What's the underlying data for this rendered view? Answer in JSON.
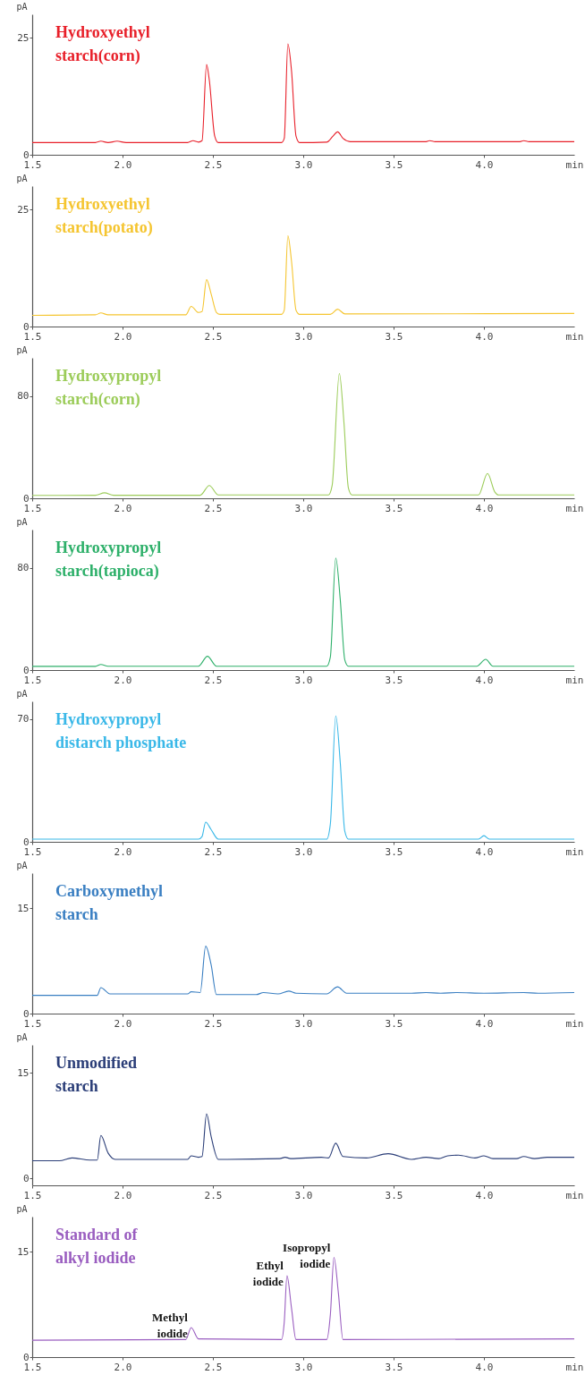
{
  "chart_data": [
    {
      "type": "line",
      "ylabel": "pA",
      "xlabel": "min",
      "xlim": [
        1.5,
        4.5
      ],
      "xticks": [
        1.5,
        {
          "value": 2,
          "label": "2.0"
        },
        2.5,
        {
          "value": 3,
          "label": "3.0"
        },
        3.5,
        {
          "value": 4,
          "label": "4.0"
        }
      ],
      "ylim": [
        0,
        30
      ],
      "yticks": [
        0,
        25
      ],
      "grid": false,
      "series": [
        {
          "name": "Hydroxyethyl\nstarch(corn)",
          "color": "#e8202a",
          "x": [
            1.5,
            1.85,
            1.88,
            1.92,
            1.97,
            2.02,
            2.36,
            2.39,
            2.42,
            2.44,
            2.465,
            2.48,
            2.51,
            2.53,
            2.88,
            2.895,
            2.915,
            2.935,
            2.96,
            2.98,
            3.13,
            3.165,
            3.19,
            3.22,
            3.26,
            3.68,
            3.7,
            3.73,
            4.2,
            4.22,
            4.25,
            4.5
          ],
          "values": [
            2.6,
            2.6,
            2.9,
            2.6,
            2.9,
            2.6,
            2.6,
            3.0,
            2.7,
            3.0,
            19.3,
            16,
            4,
            2.6,
            2.6,
            3.5,
            23.7,
            18,
            4,
            2.6,
            2.7,
            4,
            4.9,
            3.5,
            2.8,
            2.8,
            3.0,
            2.8,
            2.8,
            3.0,
            2.8,
            2.8
          ]
        }
      ]
    },
    {
      "type": "line",
      "ylabel": "pA",
      "xlabel": "min",
      "xlim": [
        1.5,
        4.5
      ],
      "xticks": [
        1.5,
        {
          "value": 2,
          "label": "2.0"
        },
        2.5,
        {
          "value": 3,
          "label": "3.0"
        },
        3.5,
        {
          "value": 4,
          "label": "4.0"
        }
      ],
      "ylim": [
        0,
        30
      ],
      "yticks": [
        0,
        25
      ],
      "grid": false,
      "series": [
        {
          "name": "Hydroxyethyl\nstarch(potato)",
          "color": "#f5c530",
          "x": [
            1.5,
            1.85,
            1.88,
            1.92,
            2.35,
            2.38,
            2.42,
            2.44,
            2.465,
            2.49,
            2.52,
            2.54,
            2.88,
            2.895,
            2.915,
            2.935,
            2.96,
            2.98,
            3.15,
            3.19,
            3.23,
            4.5
          ],
          "values": [
            2.4,
            2.5,
            2.9,
            2.5,
            2.5,
            4.3,
            3.0,
            3.2,
            10.0,
            7,
            3.0,
            2.6,
            2.6,
            3.5,
            19.4,
            14,
            3.5,
            2.6,
            2.6,
            3.7,
            2.7,
            2.8
          ]
        }
      ]
    },
    {
      "type": "line",
      "ylabel": "pA",
      "xlabel": "min",
      "xlim": [
        1.5,
        4.5
      ],
      "xticks": [
        1.5,
        {
          "value": 2,
          "label": "2.0"
        },
        2.5,
        {
          "value": 3,
          "label": "3.0"
        },
        3.5,
        {
          "value": 4,
          "label": "4.0"
        }
      ],
      "ylim": [
        0,
        110
      ],
      "yticks": [
        0,
        80
      ],
      "grid": false,
      "series": [
        {
          "name": "Hydroxypropyl\nstarch(corn)",
          "color": "#9ccc5a",
          "x": [
            1.5,
            1.85,
            1.9,
            1.95,
            2.43,
            2.48,
            2.53,
            3.14,
            3.16,
            3.2,
            3.225,
            3.25,
            3.27,
            3.97,
            4.02,
            4.06,
            4.08,
            4.5
          ],
          "values": [
            2.3,
            2.4,
            4.3,
            2.4,
            2.4,
            10.0,
            2.6,
            2.6,
            10,
            97.7,
            60,
            8,
            2.6,
            2.6,
            19.4,
            5,
            2.6,
            2.6
          ]
        }
      ]
    },
    {
      "type": "line",
      "ylabel": "pA",
      "xlabel": "min",
      "xlim": [
        1.5,
        4.5
      ],
      "xticks": [
        1.5,
        {
          "value": 2,
          "label": "2.0"
        },
        2.5,
        {
          "value": 3,
          "label": "3.0"
        },
        3.5,
        {
          "value": 4,
          "label": "4.0"
        }
      ],
      "ylim": [
        0,
        110
      ],
      "yticks": [
        0,
        80
      ],
      "grid": false,
      "series": [
        {
          "name": "Hydroxypropyl\nstarch(tapioca)",
          "color": "#2eb06a",
          "x": [
            1.5,
            1.85,
            1.88,
            1.92,
            2.42,
            2.47,
            2.52,
            3.13,
            3.15,
            3.18,
            3.205,
            3.23,
            3.25,
            3.96,
            4.01,
            4.05,
            4.5
          ],
          "values": [
            2.9,
            2.9,
            4.4,
            3.0,
            3.0,
            10.8,
            3.0,
            3.0,
            10,
            87.8,
            55,
            8,
            3.0,
            3.0,
            8.4,
            3.0,
            3.0
          ]
        }
      ]
    },
    {
      "type": "line",
      "ylabel": "pA",
      "xlabel": "min",
      "xlim": [
        1.5,
        4.5
      ],
      "xticks": [
        1.5,
        {
          "value": 2,
          "label": "2.0"
        },
        2.5,
        {
          "value": 3,
          "label": "3.0"
        },
        3.5,
        {
          "value": 4,
          "label": "4.0"
        }
      ],
      "ylim": [
        0,
        80
      ],
      "yticks": [
        0,
        70
      ],
      "grid": false,
      "series": [
        {
          "name": "Hydroxypropyl\ndistarch phosphate",
          "color": "#3ab8e8",
          "x": [
            1.5,
            2.42,
            2.44,
            2.46,
            2.49,
            2.53,
            3.13,
            3.15,
            3.18,
            3.205,
            3.23,
            3.25,
            3.97,
            4.0,
            4.03,
            4.5
          ],
          "values": [
            1.5,
            1.5,
            3,
            11.2,
            7,
            1.5,
            1.5,
            10,
            71.7,
            45,
            6,
            1.5,
            1.5,
            3.5,
            1.5,
            1.5
          ]
        }
      ]
    },
    {
      "type": "line",
      "ylabel": "pA",
      "xlabel": "min",
      "xlim": [
        1.5,
        4.5
      ],
      "xticks": [
        1.5,
        {
          "value": 2,
          "label": "2.0"
        },
        2.5,
        {
          "value": 3,
          "label": "3.0"
        },
        3.5,
        {
          "value": 4,
          "label": "4.0"
        }
      ],
      "ylim": [
        0,
        20
      ],
      "yticks": [
        0,
        15
      ],
      "grid": false,
      "series": [
        {
          "name": "Carboxymethyl\nstarch",
          "color": "#3a7fc2",
          "x": [
            1.5,
            1.86,
            1.88,
            1.93,
            2.36,
            2.38,
            2.43,
            2.46,
            2.49,
            2.52,
            2.74,
            2.78,
            2.86,
            2.92,
            2.96,
            3.13,
            3.19,
            3.24,
            3.6,
            3.68,
            3.76,
            3.85,
            4.0,
            4.22,
            4.3,
            4.5
          ],
          "values": [
            2.6,
            2.6,
            3.7,
            2.8,
            2.8,
            3.1,
            3.0,
            9.6,
            7,
            2.7,
            2.7,
            3.0,
            2.8,
            3.2,
            2.9,
            2.8,
            3.8,
            2.9,
            2.9,
            3.0,
            2.9,
            3.0,
            2.9,
            3.0,
            2.9,
            3.0
          ]
        }
      ]
    },
    {
      "type": "line",
      "ylabel": "pA",
      "xlabel": "min",
      "xlim": [
        1.5,
        4.5
      ],
      "xticks": [
        1.5,
        {
          "value": 2,
          "label": "2.0"
        },
        2.5,
        {
          "value": 3,
          "label": "3.0"
        },
        3.5,
        {
          "value": 4,
          "label": "4.0"
        }
      ],
      "ylim": [
        -1,
        19
      ],
      "yticks": [
        0,
        15
      ],
      "grid": false,
      "series": [
        {
          "name": "Unmodified\nstarch",
          "color": "#2b3e78",
          "x": [
            1.5,
            1.65,
            1.72,
            1.82,
            1.86,
            1.88,
            1.92,
            1.96,
            2.36,
            2.38,
            2.42,
            2.44,
            2.465,
            2.49,
            2.53,
            2.87,
            2.9,
            2.93,
            3.1,
            3.14,
            3.18,
            3.22,
            3.35,
            3.47,
            3.6,
            3.68,
            3.75,
            3.8,
            3.86,
            3.95,
            4.0,
            4.05,
            4.18,
            4.22,
            4.28,
            4.35,
            4.5
          ],
          "values": [
            2.5,
            2.5,
            2.9,
            2.6,
            2.6,
            6.1,
            3.6,
            2.7,
            2.7,
            3.2,
            3.0,
            3.1,
            9.2,
            6,
            2.7,
            2.8,
            3.0,
            2.8,
            3.0,
            2.9,
            5.0,
            3.1,
            2.9,
            3.5,
            2.7,
            3.0,
            2.8,
            3.2,
            3.3,
            2.9,
            3.2,
            2.8,
            2.8,
            3.1,
            2.8,
            3.0,
            3.0
          ]
        }
      ]
    },
    {
      "type": "line",
      "ylabel": "pA",
      "xlabel": "min",
      "xlim": [
        1.5,
        4.5
      ],
      "xticks": [
        1.5,
        {
          "value": 2,
          "label": "2.0"
        },
        2.5,
        {
          "value": 3,
          "label": "3.0"
        },
        3.5,
        {
          "value": 4,
          "label": "4.0"
        }
      ],
      "ylim": [
        0,
        20
      ],
      "yticks": [
        0,
        15
      ],
      "grid": false,
      "series": [
        {
          "name": "Standard of\nalkyl iodide",
          "color": "#9a5ec0",
          "x": [
            1.5,
            2.35,
            2.38,
            2.42,
            2.88,
            2.895,
            2.91,
            2.935,
            2.96,
            3.13,
            3.15,
            3.17,
            3.195,
            3.22,
            4.5
          ],
          "values": [
            2.4,
            2.5,
            4.2,
            2.6,
            2.5,
            5,
            11.6,
            7,
            2.5,
            2.5,
            6,
            14.2,
            9,
            2.5,
            2.6
          ]
        }
      ],
      "annotations": [
        {
          "text": "Methyl\niodide",
          "x": 2.38,
          "y": 4.2
        },
        {
          "text": "Ethyl\niodide",
          "x": 2.91,
          "y": 11.6
        },
        {
          "text": "Isopropyl\niodide",
          "x": 3.17,
          "y": 14.2
        }
      ]
    }
  ]
}
